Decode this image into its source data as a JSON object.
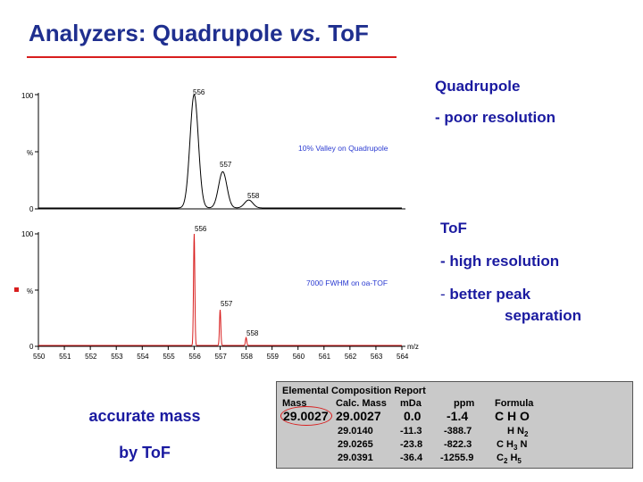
{
  "title": {
    "main": "Analyzers: Quadrupole ",
    "italic": "vs.",
    "end": " ToF"
  },
  "quad_notes": {
    "heading": "Quadrupole",
    "line": "- poor resolution"
  },
  "tof_notes": {
    "heading": "ToF",
    "line1": "- high resolution",
    "dash": "- ",
    "line2": "better peak",
    "line3": "separation"
  },
  "bottom_text": {
    "line1": "accurate mass",
    "line2": "by ToF"
  },
  "colors": {
    "title": "#1f2f8f",
    "rule": "#d81e1e",
    "quad_trace": "#000000",
    "tof_trace": "#d81e1e",
    "panel_note": "#2b3bd1"
  },
  "chart_data": [
    {
      "type": "line",
      "panel": "Quadrupole",
      "annotation": "10% Valley on Quadrupole",
      "ytick_labels": [
        "100",
        "%",
        "0"
      ],
      "ylim": [
        0,
        100
      ],
      "xlim": [
        550,
        564
      ],
      "peaks": [
        {
          "label": "556",
          "x": 556.0,
          "y": 100
        },
        {
          "label": "557",
          "x": 557.1,
          "y": 32
        },
        {
          "label": "558",
          "x": 558.1,
          "y": 7
        }
      ]
    },
    {
      "type": "line",
      "panel": "ToF",
      "annotation": "7000 FWHM on oa-TOF",
      "ytick_labels": [
        "100",
        "%",
        "0"
      ],
      "xlabel": "m/z",
      "ylim": [
        0,
        100
      ],
      "xlim": [
        550,
        564
      ],
      "xticks": [
        "550",
        "551",
        "552",
        "553",
        "554",
        "555",
        "556",
        "557",
        "558",
        "559",
        "560",
        "561",
        "562",
        "563",
        "564"
      ],
      "peaks": [
        {
          "label": "556",
          "x": 556.0,
          "y": 100
        },
        {
          "label": "557",
          "x": 557.0,
          "y": 32
        },
        {
          "label": "558",
          "x": 558.0,
          "y": 7
        }
      ]
    }
  ],
  "report": {
    "title": "Elemental Composition Report",
    "headers": [
      "Mass",
      "Calc. Mass",
      "mDa",
      "ppm",
      "Formula"
    ],
    "main_row": {
      "mass": "29.0027",
      "calc": "29.0027",
      "mda": "0.0",
      "ppm": "-1.4",
      "formula": "C H O"
    },
    "rows": [
      {
        "calc": "29.0140",
        "mda": "-11.3",
        "ppm": "-388.7",
        "f1": "H N",
        "f1sub": "2",
        "f2": "",
        "f2sub": ""
      },
      {
        "calc": "29.0265",
        "mda": "-23.8",
        "ppm": "-822.3",
        "f1": "C H",
        "f1sub": "3",
        "f2": " N",
        "f2sub": ""
      },
      {
        "calc": "29.0391",
        "mda": "-36.4",
        "ppm": "-1255.9",
        "f1": "C",
        "f1sub": "2",
        "f2": " H",
        "f2sub": "5"
      }
    ]
  }
}
